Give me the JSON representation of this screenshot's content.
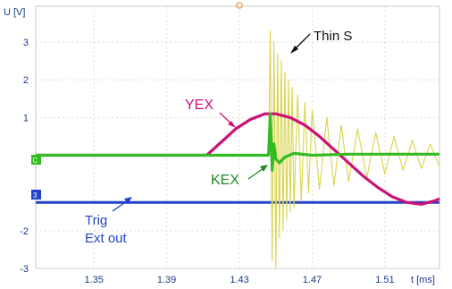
{
  "chart_data": {
    "type": "line",
    "title": "",
    "xlabel": "t [ms]",
    "ylabel": "U [V]",
    "xlim": [
      1.318,
      1.54
    ],
    "ylim": [
      -3.0,
      3.95
    ],
    "x_ticks": [
      "1.35",
      "1.39",
      "1.43",
      "1.47",
      "1.51"
    ],
    "x_tick_values": [
      1.35,
      1.39,
      1.43,
      1.47,
      1.51
    ],
    "y_ticks": [
      "3",
      "2",
      "1",
      "-2",
      "-3"
    ],
    "y_tick_values": [
      3,
      2,
      1,
      -2,
      -3
    ],
    "grid": true,
    "series": [
      {
        "name": "Thin S",
        "color": "#d9d44a",
        "x": [
          1.318,
          1.446,
          1.447,
          1.448,
          1.449,
          1.45,
          1.451,
          1.452,
          1.453,
          1.454,
          1.455,
          1.456,
          1.457,
          1.458,
          1.459,
          1.46,
          1.462,
          1.464,
          1.466,
          1.468,
          1.47,
          1.474,
          1.478,
          1.482,
          1.486,
          1.49,
          1.495,
          1.5,
          1.505,
          1.51,
          1.515,
          1.52,
          1.525,
          1.53,
          1.535,
          1.54
        ],
        "y": [
          0.0,
          0.0,
          3.3,
          -2.8,
          3.0,
          -3.0,
          2.7,
          -2.2,
          2.5,
          -2.0,
          2.2,
          -1.7,
          2.0,
          -1.5,
          1.8,
          -1.4,
          1.6,
          -1.2,
          1.4,
          -1.0,
          1.2,
          -0.9,
          1.0,
          -0.8,
          0.8,
          -0.7,
          0.7,
          -0.6,
          0.6,
          -0.5,
          0.5,
          -0.4,
          0.4,
          -0.35,
          0.3,
          -0.3
        ]
      },
      {
        "name": "YEX",
        "color": "#cc1177",
        "x": [
          1.318,
          1.412,
          1.42,
          1.428,
          1.436,
          1.444,
          1.45,
          1.458,
          1.466,
          1.474,
          1.482,
          1.49,
          1.498,
          1.506,
          1.514,
          1.522,
          1.53,
          1.538,
          1.54
        ],
        "y": [
          0.0,
          0.0,
          0.35,
          0.7,
          0.95,
          1.1,
          1.1,
          1.0,
          0.8,
          0.5,
          0.15,
          -0.2,
          -0.55,
          -0.85,
          -1.1,
          -1.25,
          -1.3,
          -1.2,
          -1.15
        ]
      },
      {
        "name": "KEX",
        "color": "#33bb22",
        "x": [
          1.318,
          1.446,
          1.447,
          1.448,
          1.449,
          1.45,
          1.452,
          1.455,
          1.46,
          1.47,
          1.49,
          1.54
        ],
        "y": [
          0.0,
          0.0,
          1.1,
          -0.4,
          0.3,
          -0.1,
          -0.2,
          -0.05,
          0.05,
          0.0,
          0.03,
          0.03
        ]
      },
      {
        "name": "Trig Ext out",
        "color": "#2244cc",
        "x": [
          1.318,
          1.54
        ],
        "y": [
          -1.25,
          -1.25
        ]
      }
    ],
    "annotations": {
      "thin_s": "Thin S",
      "yex": "YEX",
      "kex": "KEX",
      "trig_line1": "Trig",
      "trig_line2": "Ext out"
    },
    "marker_labels": {
      "ch_a": "C",
      "ch_b": "3"
    }
  }
}
